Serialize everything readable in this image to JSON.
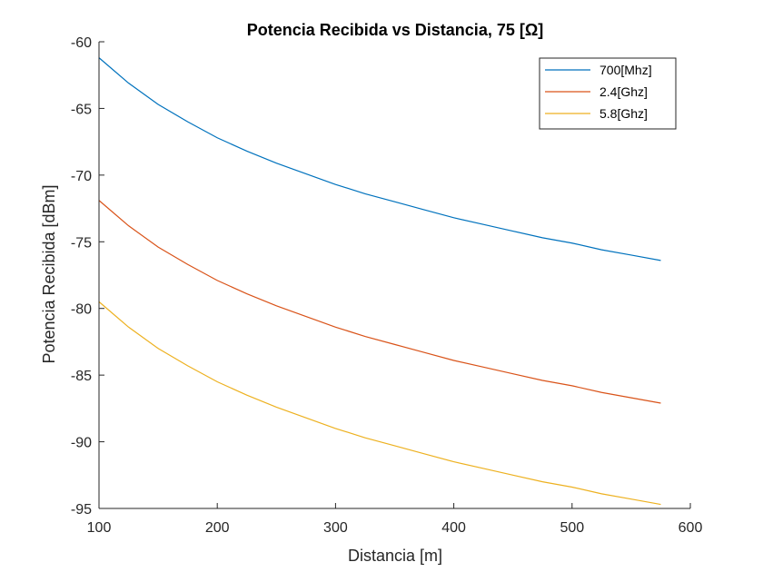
{
  "chart_data": {
    "type": "line",
    "title": "Potencia Recibida vs Distancia, 75 [Ω]",
    "xlabel": "Distancia [m]",
    "ylabel": "Potencia Recibida [dBm]",
    "xlim": [
      100,
      600
    ],
    "ylim": [
      -95,
      -60
    ],
    "xticks": [
      100,
      200,
      300,
      400,
      500,
      600
    ],
    "yticks": [
      -95,
      -90,
      -85,
      -80,
      -75,
      -70,
      -65,
      -60
    ],
    "grid": false,
    "legend_position": "top-right",
    "x": [
      100,
      125,
      150,
      175,
      200,
      225,
      250,
      275,
      300,
      325,
      350,
      375,
      400,
      425,
      450,
      475,
      500,
      525,
      550,
      575
    ],
    "series": [
      {
        "name": "700[Mhz]",
        "color": "#0072BD",
        "values": [
          -61.2,
          -63.1,
          -64.7,
          -66.0,
          -67.2,
          -68.2,
          -69.1,
          -69.9,
          -70.7,
          -71.4,
          -72.0,
          -72.6,
          -73.2,
          -73.7,
          -74.2,
          -74.7,
          -75.1,
          -75.6,
          -76.0,
          -76.4
        ]
      },
      {
        "name": "2.4[Ghz]",
        "color": "#D95319",
        "values": [
          -71.9,
          -73.8,
          -75.4,
          -76.7,
          -77.9,
          -78.9,
          -79.8,
          -80.6,
          -81.4,
          -82.1,
          -82.7,
          -83.3,
          -83.9,
          -84.4,
          -84.9,
          -85.4,
          -85.8,
          -86.3,
          -86.7,
          -87.1
        ]
      },
      {
        "name": "5.8[Ghz]",
        "color": "#EDB120",
        "values": [
          -79.5,
          -81.4,
          -83.0,
          -84.3,
          -85.5,
          -86.5,
          -87.4,
          -88.2,
          -89.0,
          -89.7,
          -90.3,
          -90.9,
          -91.5,
          -92.0,
          -92.5,
          -93.0,
          -93.4,
          -93.9,
          -94.3,
          -94.7
        ]
      }
    ]
  }
}
